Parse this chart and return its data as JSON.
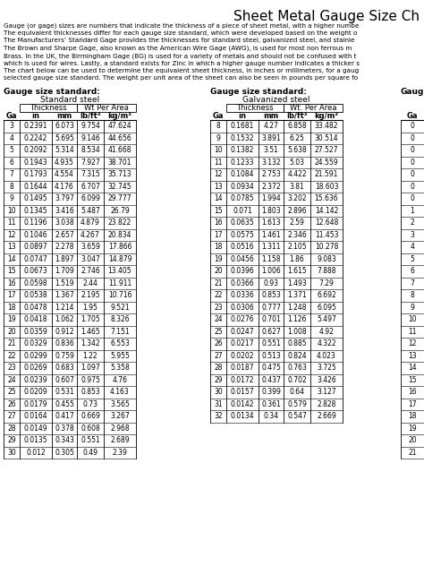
{
  "title": "Sheet Metal Gauge Size Ch",
  "description_lines": [
    "Gauge (or gage) sizes are numbers that indicate the thickness of a piece of sheet metal, with a higher numbe",
    "The equivalent thicknesses differ for each gauge size standard, which were developed based on the weight o",
    "The Manufacturers’ Standard Gage provides the thicknesses for standard steel, galvanized steel, and stainle",
    "The Brown and Sharpe Gage, also known as the American Wire Gage (AWG), is used for most non ferrous m",
    "Brass. In the UK, the Birmingham Gage (BG) is used for a variety of metals and should not be confused with t",
    "which is used for wires. Lastly, a standard exists for Zinc in which a higher gauge number indicates a thicker s",
    "The chart below can be used to determine the equivalent sheet thickness, in inches or millimeters, for a gaug",
    "selected gauge size standard. The weight per unit area of the sheet can also be seen in pounds per square fo"
  ],
  "standard_steel": {
    "header": "Standard steel",
    "subheader1": "Thickness",
    "subheader2": "Wt Per Area",
    "col_headers": [
      "Ga",
      "in",
      "mm",
      "lb/ft²",
      "kg/m²"
    ],
    "rows": [
      [
        3,
        0.2391,
        6.073,
        9.754,
        47.624
      ],
      [
        4,
        0.2242,
        5.695,
        9.146,
        44.656
      ],
      [
        5,
        0.2092,
        5.314,
        8.534,
        41.668
      ],
      [
        6,
        0.1943,
        4.935,
        7.927,
        38.701
      ],
      [
        7,
        0.1793,
        4.554,
        7.315,
        35.713
      ],
      [
        8,
        0.1644,
        4.176,
        6.707,
        32.745
      ],
      [
        9,
        0.1495,
        3.797,
        6.099,
        29.777
      ],
      [
        10,
        0.1345,
        3.416,
        5.487,
        26.79
      ],
      [
        11,
        0.1196,
        3.038,
        4.879,
        23.822
      ],
      [
        12,
        0.1046,
        2.657,
        4.267,
        20.834
      ],
      [
        13,
        0.0897,
        2.278,
        3.659,
        17.866
      ],
      [
        14,
        0.0747,
        1.897,
        3.047,
        14.879
      ],
      [
        15,
        0.0673,
        1.709,
        2.746,
        13.405
      ],
      [
        16,
        0.0598,
        1.519,
        2.44,
        11.911
      ],
      [
        17,
        0.0538,
        1.367,
        2.195,
        10.716
      ],
      [
        18,
        0.0478,
        1.214,
        1.95,
        9.521
      ],
      [
        19,
        0.0418,
        1.062,
        1.705,
        8.326
      ],
      [
        20,
        0.0359,
        0.912,
        1.465,
        7.151
      ],
      [
        21,
        0.0329,
        0.836,
        1.342,
        6.553
      ],
      [
        22,
        0.0299,
        0.759,
        1.22,
        5.955
      ],
      [
        23,
        0.0269,
        0.683,
        1.097,
        5.358
      ],
      [
        24,
        0.0239,
        0.607,
        0.975,
        4.76
      ],
      [
        25,
        0.0209,
        0.531,
        0.853,
        4.163
      ],
      [
        26,
        0.0179,
        0.455,
        0.73,
        3.565
      ],
      [
        27,
        0.0164,
        0.417,
        0.669,
        3.267
      ],
      [
        28,
        0.0149,
        0.378,
        0.608,
        2.968
      ],
      [
        29,
        0.0135,
        0.343,
        0.551,
        2.689
      ],
      [
        30,
        0.012,
        0.305,
        0.49,
        2.39
      ]
    ]
  },
  "galvanized_steel": {
    "header": "Galvanized steel",
    "subheader1": "Thickness",
    "subheader2": "Wt. Per Area",
    "col_headers": [
      "Ga",
      "in",
      "mm",
      "lb/ft²",
      "kg/m²"
    ],
    "rows": [
      [
        8,
        0.1681,
        4.27,
        6.858,
        33.482
      ],
      [
        9,
        0.1532,
        3.891,
        6.25,
        30.514
      ],
      [
        10,
        0.1382,
        3.51,
        5.638,
        27.527
      ],
      [
        11,
        0.1233,
        3.132,
        5.03,
        24.559
      ],
      [
        12,
        0.1084,
        2.753,
        4.422,
        21.591
      ],
      [
        13,
        0.0934,
        2.372,
        3.81,
        18.603
      ],
      [
        14,
        0.0785,
        1.994,
        3.202,
        15.636
      ],
      [
        15,
        0.071,
        1.803,
        2.896,
        14.142
      ],
      [
        16,
        0.0635,
        1.613,
        2.59,
        12.648
      ],
      [
        17,
        0.0575,
        1.461,
        2.346,
        11.453
      ],
      [
        18,
        0.0516,
        1.311,
        2.105,
        10.278
      ],
      [
        19,
        0.0456,
        1.158,
        1.86,
        9.083
      ],
      [
        20,
        0.0396,
        1.006,
        1.615,
        7.888
      ],
      [
        21,
        0.0366,
        0.93,
        1.493,
        7.29
      ],
      [
        22,
        0.0336,
        0.853,
        1.371,
        6.692
      ],
      [
        23,
        0.0306,
        0.777,
        1.248,
        6.095
      ],
      [
        24,
        0.0276,
        0.701,
        1.126,
        5.497
      ],
      [
        25,
        0.0247,
        0.627,
        1.008,
        4.92
      ],
      [
        26,
        0.0217,
        0.551,
        0.885,
        4.322
      ],
      [
        27,
        0.0202,
        0.513,
        0.824,
        4.023
      ],
      [
        28,
        0.0187,
        0.475,
        0.763,
        3.725
      ],
      [
        29,
        0.0172,
        0.437,
        0.702,
        3.426
      ],
      [
        30,
        0.0157,
        0.399,
        0.64,
        3.127
      ],
      [
        31,
        0.0142,
        0.361,
        0.579,
        2.828
      ],
      [
        32,
        0.0134,
        0.34,
        0.547,
        2.669
      ]
    ]
  },
  "third_col": {
    "header": "Gaug",
    "col_header": "Ga",
    "rows": [
      0,
      0,
      0,
      0,
      0,
      0,
      0,
      1,
      2,
      3,
      4,
      5,
      6,
      7,
      8,
      9,
      10,
      11,
      12,
      13,
      14,
      15,
      16,
      17,
      18,
      19,
      20,
      21
    ]
  },
  "bg_color": "#ffffff",
  "text_color": "#000000",
  "border_color": "#000000",
  "title_fontsize": 11,
  "desc_fontsize": 5.2,
  "header_fontsize": 6.5,
  "subheader_fontsize": 6.0,
  "col_header_fontsize": 6.0,
  "data_fontsize": 5.5
}
